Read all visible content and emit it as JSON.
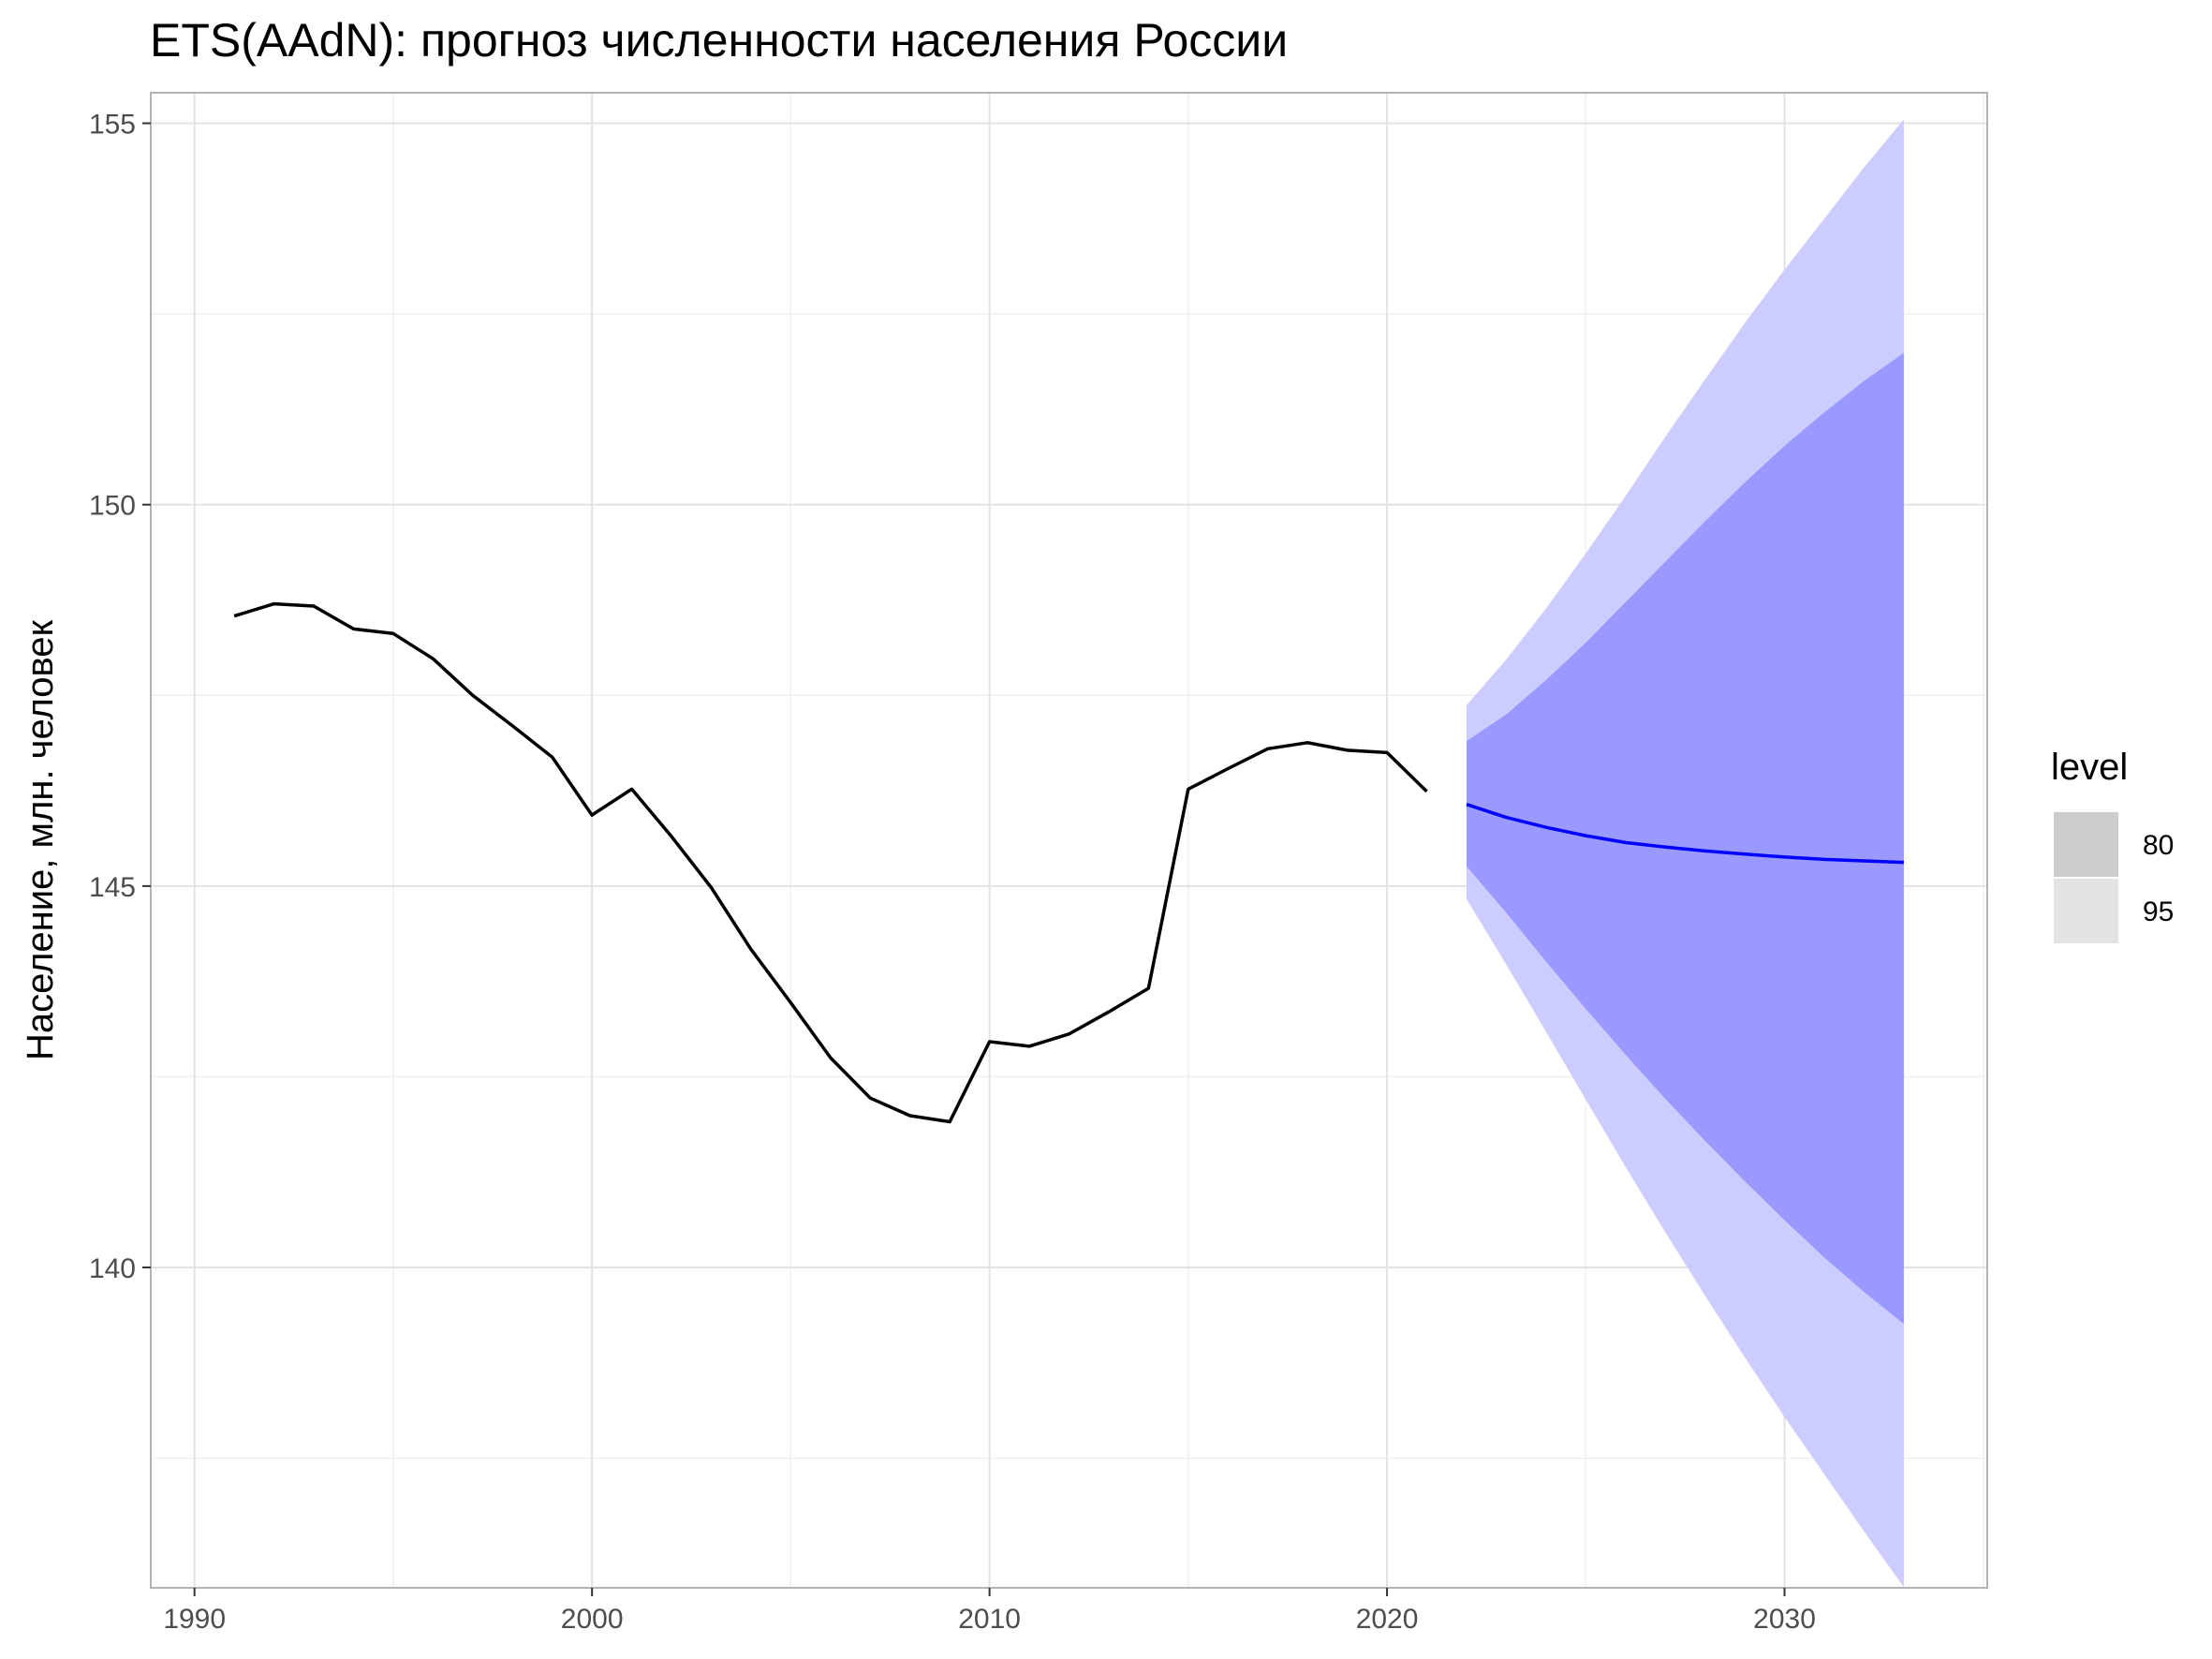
{
  "chart_data": {
    "type": "line",
    "title": "ETS(AAdN): прогноз численности населения России",
    "xlabel": "",
    "ylabel": "Население, млн. человек",
    "xlim": [
      1988.9,
      2035.1
    ],
    "ylim": [
      135.8,
      155.4
    ],
    "x_ticks": [
      1990,
      2000,
      2010,
      2020,
      2030
    ],
    "y_ticks": [
      140,
      145,
      150,
      155
    ],
    "grid": true,
    "series": [
      {
        "kind": "observed",
        "color": "#000000",
        "x": [
          1991,
          1992,
          1993,
          1994,
          1995,
          1996,
          1997,
          1998,
          1999,
          2000,
          2001,
          2002,
          2003,
          2004,
          2005,
          2006,
          2007,
          2008,
          2009,
          2010,
          2011,
          2012,
          2013,
          2014,
          2015,
          2016,
          2017,
          2018,
          2019,
          2020,
          2021
        ],
        "values": [
          148.54,
          148.7,
          148.67,
          148.37,
          148.31,
          147.98,
          147.5,
          147.1,
          146.69,
          145.93,
          146.27,
          145.65,
          144.98,
          144.17,
          143.47,
          142.75,
          142.22,
          141.99,
          141.91,
          142.96,
          142.9,
          143.06,
          143.35,
          143.66,
          146.27,
          146.54,
          146.8,
          146.88,
          146.78,
          146.75,
          146.24
        ]
      },
      {
        "kind": "forecast",
        "color": "#0000ff",
        "x": [
          2022,
          2023,
          2024,
          2025,
          2026,
          2027,
          2028,
          2029,
          2030,
          2031,
          2032,
          2033
        ],
        "values": [
          146.07,
          145.9,
          145.77,
          145.66,
          145.57,
          145.51,
          145.46,
          145.42,
          145.38,
          145.35,
          145.33,
          145.31
        ]
      }
    ],
    "intervals": [
      {
        "level": "95",
        "color": "#ccccff",
        "x": [
          2022,
          2023,
          2024,
          2025,
          2026,
          2027,
          2028,
          2029,
          2030,
          2031,
          2032,
          2033
        ],
        "lower": [
          144.83,
          143.97,
          143.09,
          142.2,
          141.32,
          140.46,
          139.63,
          138.82,
          138.04,
          137.29,
          136.54,
          135.81
        ],
        "upper": [
          147.37,
          147.97,
          148.64,
          149.36,
          150.11,
          150.89,
          151.64,
          152.38,
          153.08,
          153.75,
          154.42,
          155.05
        ]
      },
      {
        "level": "80",
        "color": "#9999ff",
        "x": [
          2022,
          2023,
          2024,
          2025,
          2026,
          2027,
          2028,
          2029,
          2030,
          2031,
          2032,
          2033
        ],
        "lower": [
          145.26,
          144.65,
          144.01,
          143.39,
          142.79,
          142.21,
          141.66,
          141.13,
          140.62,
          140.13,
          139.68,
          139.26
        ],
        "upper": [
          146.9,
          147.25,
          147.7,
          148.19,
          148.72,
          149.25,
          149.78,
          150.29,
          150.77,
          151.21,
          151.62,
          151.99
        ]
      }
    ],
    "legend": {
      "title": "level",
      "position": "right",
      "items": [
        {
          "label": "80",
          "color": "#cccccc"
        },
        {
          "label": "95",
          "color": "#e3e3e3"
        }
      ]
    }
  }
}
